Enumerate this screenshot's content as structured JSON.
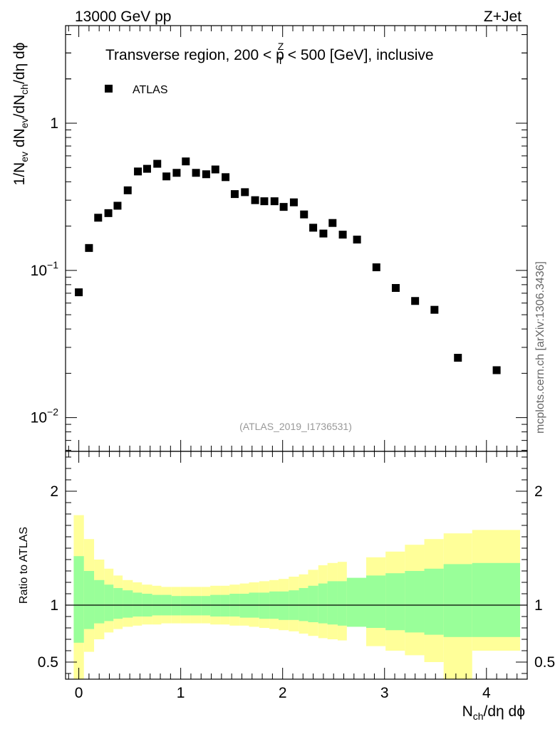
{
  "header": {
    "left": "13000 GeV pp",
    "right": "Z+Jet"
  },
  "side_label": "mcplots.cern.ch [arXiv:1306.3436]",
  "chart_data": [
    {
      "type": "scatter",
      "title": {
        "before": "Transverse region, 200 < p",
        "sup": "Z",
        "sub": "T",
        "after": " < 500 [GeV], inclusive"
      },
      "ylabel": {
        "p1": "1/N",
        "p1sub": "ev",
        "p2": " dN",
        "p2sub": "ev",
        "p3": "/dN",
        "p3sub": "ch",
        "p4": "/dη dϕ"
      },
      "yscale": "log",
      "xlim": [
        -0.13,
        4.4
      ],
      "ylim": [
        0.0059,
        4.6
      ],
      "yticks": [
        {
          "value": 1,
          "label": "1",
          "exp": ""
        },
        {
          "value": 0.1,
          "label": "10",
          "exp": "−1"
        },
        {
          "value": 0.01,
          "label": "10",
          "exp": "−2"
        }
      ],
      "legend": {
        "position": "top-left",
        "label": "ATLAS"
      },
      "watermark": "(ATLAS_2019_I1736531)",
      "series": [
        {
          "name": "ATLAS",
          "x": [
            0.0,
            0.1,
            0.19,
            0.29,
            0.38,
            0.48,
            0.58,
            0.67,
            0.77,
            0.86,
            0.96,
            1.05,
            1.15,
            1.25,
            1.34,
            1.44,
            1.53,
            1.63,
            1.73,
            1.82,
            1.92,
            2.01,
            2.11,
            2.21,
            2.3,
            2.4,
            2.49,
            2.59,
            2.73,
            2.92,
            3.11,
            3.3,
            3.49,
            3.72,
            4.1
          ],
          "y": [
            0.071,
            0.142,
            0.228,
            0.245,
            0.275,
            0.35,
            0.47,
            0.49,
            0.53,
            0.435,
            0.46,
            0.55,
            0.46,
            0.45,
            0.485,
            0.43,
            0.33,
            0.34,
            0.3,
            0.295,
            0.295,
            0.27,
            0.29,
            0.24,
            0.195,
            0.178,
            0.21,
            0.175,
            0.162,
            0.105,
            0.076,
            0.062,
            0.054,
            0.0255,
            0.021
          ]
        }
      ]
    },
    {
      "type": "area",
      "ylabel": "Ratio to ATLAS",
      "xlabel": {
        "main": "N",
        "sub": "ch",
        "rest": "/dη dϕ"
      },
      "xlim": [
        -0.13,
        4.4
      ],
      "ylim": [
        0.35,
        2.35
      ],
      "reference_line": 1,
      "yticks": [
        "0.5",
        "1",
        "2"
      ],
      "xticks": [
        "0",
        "1",
        "2",
        "3",
        "4"
      ],
      "bands": {
        "edges": [
          -0.05,
          0.05,
          0.15,
          0.25,
          0.34,
          0.43,
          0.53,
          0.62,
          0.72,
          0.81,
          0.91,
          1.0,
          1.1,
          1.2,
          1.29,
          1.39,
          1.48,
          1.58,
          1.67,
          1.77,
          1.87,
          1.96,
          2.06,
          2.16,
          2.25,
          2.35,
          2.44,
          2.54,
          2.63,
          2.82,
          3.01,
          3.2,
          3.39,
          3.58,
          3.86,
          4.33
        ],
        "green_up": [
          1.43,
          1.3,
          1.22,
          1.18,
          1.15,
          1.13,
          1.11,
          1.1,
          1.09,
          1.09,
          1.08,
          1.08,
          1.08,
          1.08,
          1.09,
          1.09,
          1.1,
          1.1,
          1.11,
          1.11,
          1.12,
          1.12,
          1.13,
          1.15,
          1.17,
          1.19,
          1.21,
          1.21,
          1.24,
          1.26,
          1.28,
          1.3,
          1.32,
          1.36,
          1.37
        ],
        "green_down": [
          0.67,
          0.79,
          0.84,
          0.86,
          0.88,
          0.89,
          0.9,
          0.9,
          0.91,
          0.91,
          0.91,
          0.91,
          0.91,
          0.91,
          0.9,
          0.9,
          0.9,
          0.89,
          0.89,
          0.88,
          0.88,
          0.87,
          0.87,
          0.86,
          0.85,
          0.84,
          0.83,
          0.82,
          0.81,
          0.8,
          0.78,
          0.76,
          0.74,
          0.72,
          0.72
        ],
        "yellow_up": [
          1.79,
          1.58,
          1.4,
          1.32,
          1.26,
          1.22,
          1.2,
          1.18,
          1.17,
          1.16,
          1.16,
          1.16,
          1.16,
          1.16,
          1.17,
          1.17,
          1.18,
          1.19,
          1.2,
          1.21,
          1.22,
          1.23,
          1.25,
          1.27,
          1.31,
          1.35,
          1.37,
          1.38,
          1.23,
          1.42,
          1.47,
          1.53,
          1.58,
          1.63,
          1.66
        ],
        "yellow_down": [
          0.1,
          0.59,
          0.7,
          0.76,
          0.79,
          0.81,
          0.82,
          0.83,
          0.83,
          0.84,
          0.84,
          0.84,
          0.84,
          0.84,
          0.83,
          0.83,
          0.82,
          0.82,
          0.81,
          0.8,
          0.79,
          0.78,
          0.77,
          0.75,
          0.73,
          0.71,
          0.7,
          0.69,
          0.83,
          0.64,
          0.6,
          0.56,
          0.5,
          0.3,
          0.6
        ],
        "green_color": "#99ff99",
        "yellow_color": "#ffff99"
      }
    }
  ]
}
